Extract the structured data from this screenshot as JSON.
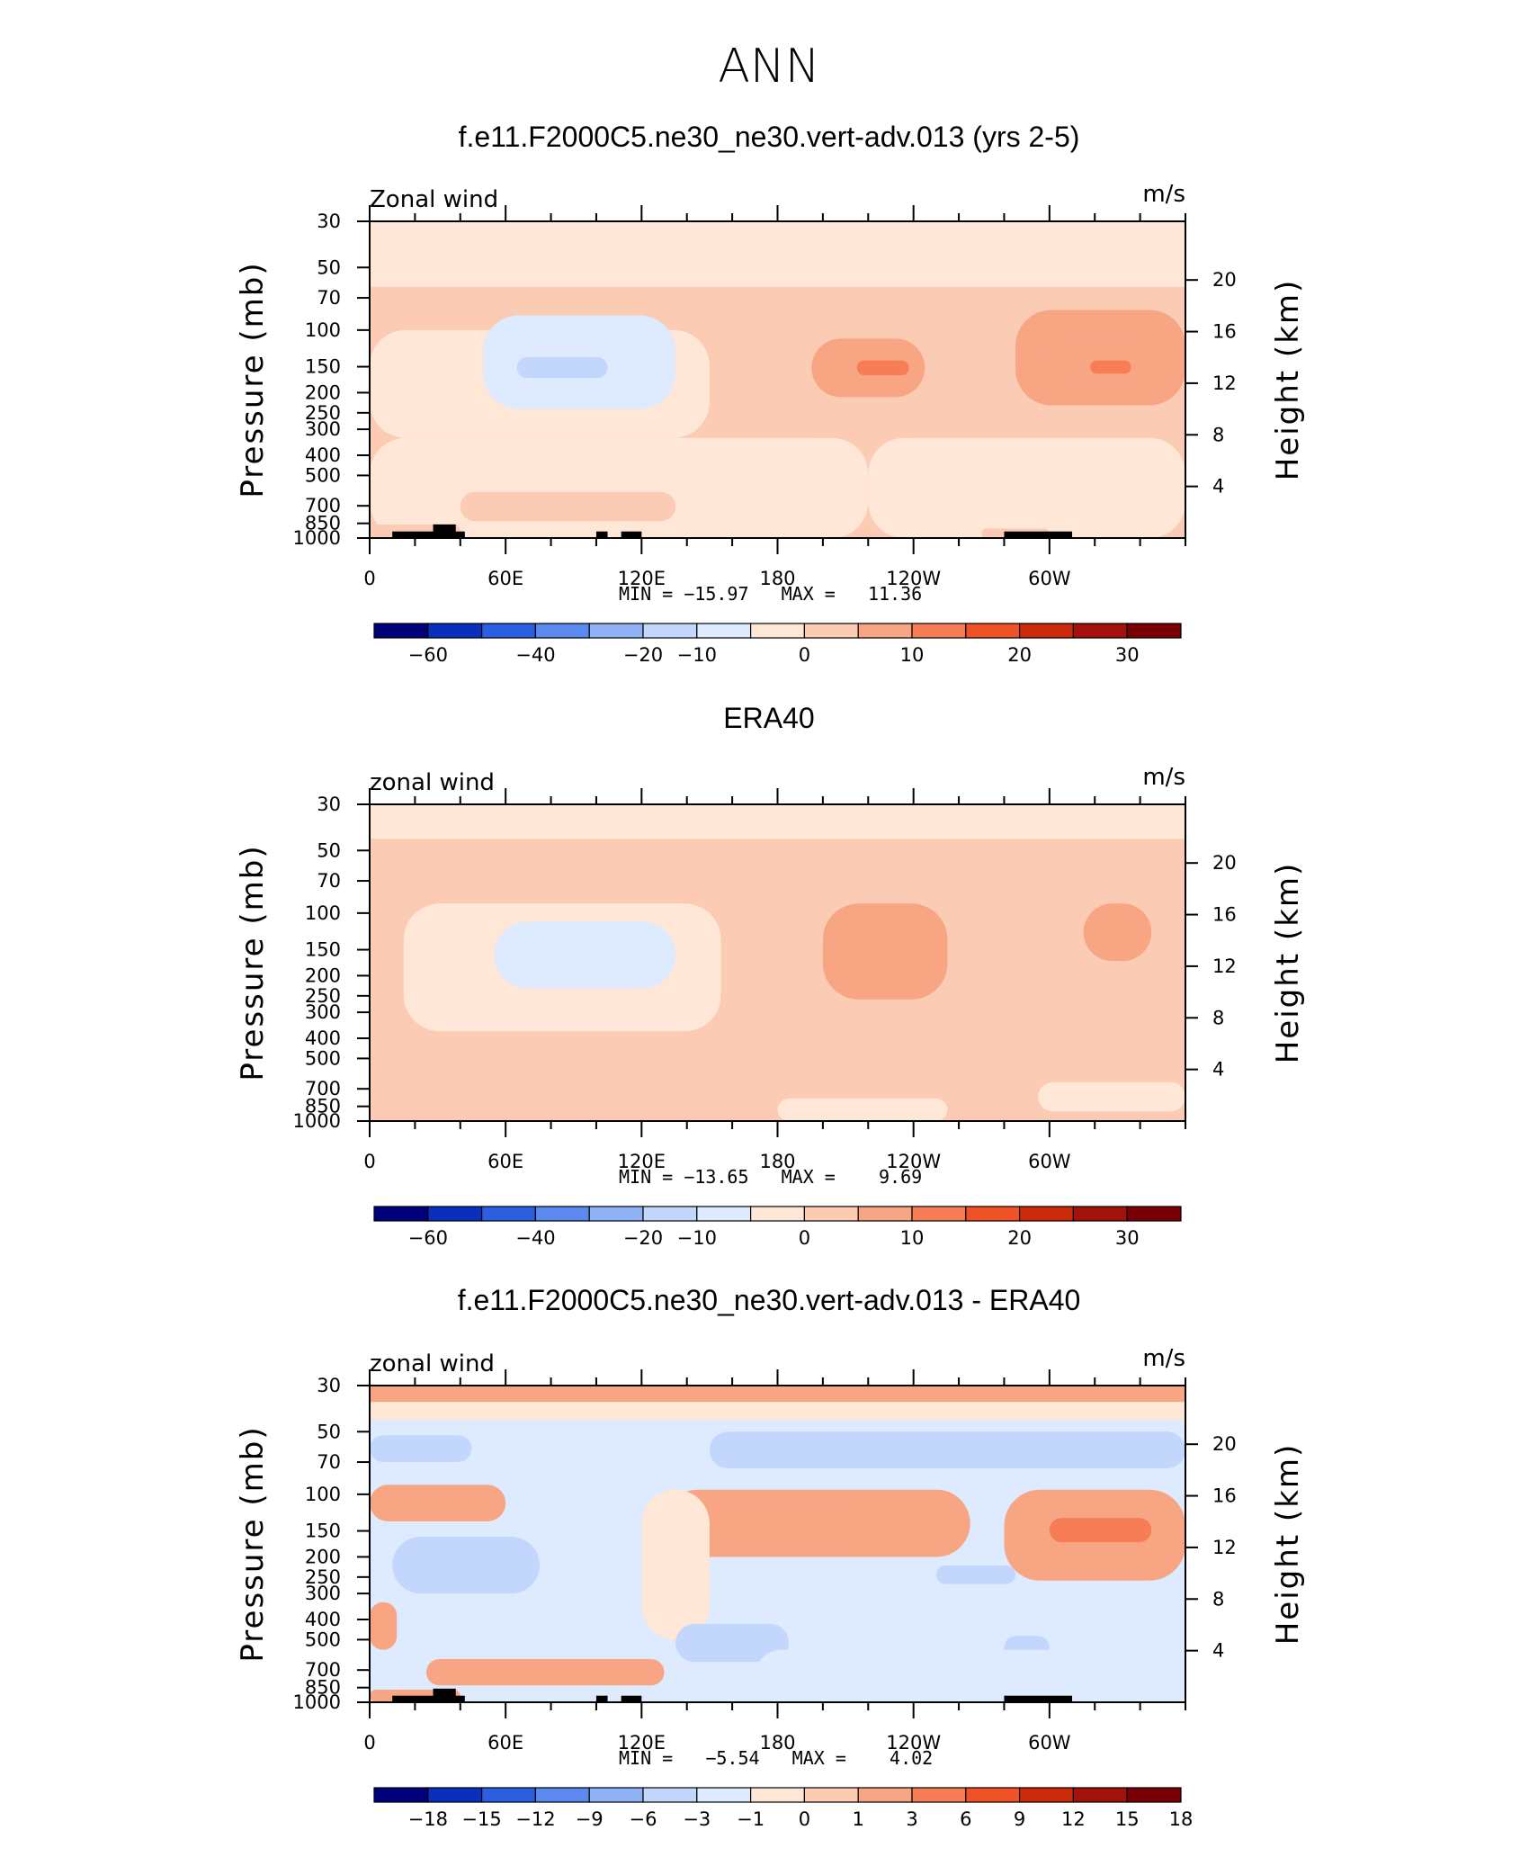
{
  "page_title": "ANN",
  "colors": {
    "land_mask": "#000000",
    "frame": "#000000",
    "palette": [
      "#00007a",
      "#0a2fbf",
      "#2a5fe0",
      "#5a8af0",
      "#8fb2f6",
      "#c3d6fb",
      "#deeafd",
      "#fee7d6",
      "#fbcbb3",
      "#f8a584",
      "#f67d55",
      "#ef5226",
      "#cc2a0b",
      "#a3120a",
      "#7a0008"
    ]
  },
  "chart_data": [
    {
      "type": "heatmap",
      "title": "f.e11.F2000C5.ne30_ne30.vert-adv.013 (yrs 2-5)",
      "left_label": "Zonal wind",
      "units": "m/s",
      "ylabel": "Pressure (mb)",
      "y2label": "Height (km)",
      "x_ticks": [
        "0",
        "60E",
        "120E",
        "180",
        "120W",
        "60W"
      ],
      "x_tick_values": [
        0,
        60,
        120,
        180,
        240,
        300
      ],
      "xlim": [
        0,
        360
      ],
      "p_ticks": [
        "30",
        "50",
        "70",
        "100",
        "150",
        "200",
        "250",
        "300",
        "400",
        "500",
        "700",
        "850",
        "1000"
      ],
      "p_tick_values": [
        30,
        50,
        70,
        100,
        150,
        200,
        250,
        300,
        400,
        500,
        700,
        850,
        1000
      ],
      "height_ticks": [
        "4",
        "8",
        "12",
        "16",
        "20"
      ],
      "height_tick_values": [
        4,
        8,
        12,
        16,
        20
      ],
      "stats_text": "MIN = −15.97   MAX =   11.36",
      "colorbar_labels": [
        "−60",
        "−40",
        "−20",
        "−10",
        "0",
        "10",
        "20",
        "30"
      ],
      "colorbar_label_boundaries": [
        1,
        3,
        5,
        6,
        8,
        10,
        12,
        14
      ],
      "field": {
        "base": 0,
        "features": [
          {
            "lon0": 0,
            "lon1": 360,
            "p0": 30,
            "p1": 62,
            "value": -3
          },
          {
            "lon0": 0,
            "lon1": 360,
            "p0": 62,
            "p1": 330,
            "value": 2
          },
          {
            "lon0": 0,
            "lon1": 150,
            "p0": 100,
            "p1": 330,
            "value": -3
          },
          {
            "lon0": 0,
            "lon1": 220,
            "p0": 330,
            "p1": 1000,
            "value": -3
          },
          {
            "lon0": 220,
            "lon1": 360,
            "p0": 330,
            "p1": 1000,
            "value": -2
          },
          {
            "lon0": 50,
            "lon1": 135,
            "p0": 85,
            "p1": 240,
            "value": -7
          },
          {
            "lon0": 65,
            "lon1": 105,
            "p0": 135,
            "p1": 170,
            "value": -14
          },
          {
            "lon0": 180,
            "lon1": 255,
            "p0": 85,
            "p1": 330,
            "value": 4
          },
          {
            "lon0": 195,
            "lon1": 245,
            "p0": 110,
            "p1": 210,
            "value": 9
          },
          {
            "lon0": 215,
            "lon1": 238,
            "p0": 140,
            "p1": 165,
            "value": 14
          },
          {
            "lon0": 285,
            "lon1": 360,
            "p0": 80,
            "p1": 230,
            "value": 6
          },
          {
            "lon0": 298,
            "lon1": 348,
            "p0": 110,
            "p1": 185,
            "value": 9
          },
          {
            "lon0": 318,
            "lon1": 336,
            "p0": 140,
            "p1": 162,
            "value": 13
          },
          {
            "lon0": 40,
            "lon1": 135,
            "p0": 600,
            "p1": 830,
            "value": 2
          },
          {
            "lon0": 0,
            "lon1": 40,
            "p0": 860,
            "p1": 1000,
            "value": 2
          },
          {
            "lon0": 270,
            "lon1": 300,
            "p0": 900,
            "p1": 1000,
            "value": 2
          }
        ]
      },
      "land": [
        {
          "lon0": 10,
          "lon1": 42,
          "p": 930
        },
        {
          "lon0": 28,
          "lon1": 38,
          "p": 860
        },
        {
          "lon0": 100,
          "lon1": 105,
          "p": 930
        },
        {
          "lon0": 111,
          "lon1": 120,
          "p": 930
        },
        {
          "lon0": 280,
          "lon1": 310,
          "p": 930
        }
      ]
    },
    {
      "type": "heatmap",
      "title": "ERA40",
      "left_label": "zonal wind",
      "units": "m/s",
      "ylabel": "Pressure (mb)",
      "y2label": "Height (km)",
      "x_ticks": [
        "0",
        "60E",
        "120E",
        "180",
        "120W",
        "60W"
      ],
      "x_tick_values": [
        0,
        60,
        120,
        180,
        240,
        300
      ],
      "xlim": [
        0,
        360
      ],
      "p_ticks": [
        "30",
        "50",
        "70",
        "100",
        "150",
        "200",
        "250",
        "300",
        "400",
        "500",
        "700",
        "850",
        "1000"
      ],
      "p_tick_values": [
        30,
        50,
        70,
        100,
        150,
        200,
        250,
        300,
        400,
        500,
        700,
        850,
        1000
      ],
      "height_ticks": [
        "4",
        "8",
        "12",
        "16",
        "20"
      ],
      "height_tick_values": [
        4,
        8,
        12,
        16,
        20
      ],
      "stats_text": "MIN = −13.65   MAX =    9.69",
      "colorbar_labels": [
        "−60",
        "−40",
        "−20",
        "−10",
        "0",
        "10",
        "20",
        "30"
      ],
      "colorbar_label_boundaries": [
        1,
        3,
        5,
        6,
        8,
        10,
        12,
        14
      ],
      "field": {
        "base": 2,
        "features": [
          {
            "lon0": 0,
            "lon1": 360,
            "p0": 30,
            "p1": 44,
            "value": -3
          },
          {
            "lon0": 15,
            "lon1": 155,
            "p0": 90,
            "p1": 370,
            "value": -3
          },
          {
            "lon0": 55,
            "lon1": 135,
            "p0": 110,
            "p1": 230,
            "value": -7
          },
          {
            "lon0": 175,
            "lon1": 360,
            "p0": 68,
            "p1": 360,
            "value": 4
          },
          {
            "lon0": 200,
            "lon1": 255,
            "p0": 90,
            "p1": 260,
            "value": 8
          },
          {
            "lon0": 315,
            "lon1": 345,
            "p0": 90,
            "p1": 170,
            "value": 8
          },
          {
            "lon0": 50,
            "lon1": 105,
            "p0": 620,
            "p1": 1000,
            "value": 4
          },
          {
            "lon0": 180,
            "lon1": 255,
            "p0": 780,
            "p1": 1000,
            "value": -3
          },
          {
            "lon0": 295,
            "lon1": 360,
            "p0": 650,
            "p1": 900,
            "value": -3
          }
        ]
      },
      "land": []
    },
    {
      "type": "heatmap",
      "title": "f.e11.F2000C5.ne30_ne30.vert-adv.013 - ERA40",
      "left_label": "zonal wind",
      "units": "m/s",
      "ylabel": "Pressure (mb)",
      "y2label": "Height (km)",
      "x_ticks": [
        "0",
        "60E",
        "120E",
        "180",
        "120W",
        "60W"
      ],
      "x_tick_values": [
        0,
        60,
        120,
        180,
        240,
        300
      ],
      "xlim": [
        0,
        360
      ],
      "p_ticks": [
        "30",
        "50",
        "70",
        "100",
        "150",
        "200",
        "250",
        "300",
        "400",
        "500",
        "700",
        "850",
        "1000"
      ],
      "p_tick_values": [
        30,
        50,
        70,
        100,
        150,
        200,
        250,
        300,
        400,
        500,
        700,
        850,
        1000
      ],
      "height_ticks": [
        "4",
        "8",
        "12",
        "16",
        "20"
      ],
      "height_tick_values": [
        4,
        8,
        12,
        16,
        20
      ],
      "stats_text": "MIN =   −5.54   MAX =    4.02",
      "colorbar_labels": [
        "−18",
        "−15",
        "−12",
        "−9",
        "−6",
        "−3",
        "−1",
        "0",
        "1",
        "3",
        "6",
        "9",
        "12",
        "15",
        "18"
      ],
      "colorbar_label_boundaries": [
        1,
        2,
        3,
        4,
        5,
        6,
        7,
        8,
        9,
        10,
        11,
        12,
        13,
        14,
        15
      ],
      "field": {
        "base": -1.5,
        "features": [
          {
            "lon0": 0,
            "lon1": 360,
            "p0": 30,
            "p1": 36,
            "value": 1.5
          },
          {
            "lon0": 0,
            "lon1": 360,
            "p0": 36,
            "p1": 44,
            "value": -0.5
          },
          {
            "lon0": 0,
            "lon1": 360,
            "p0": 44,
            "p1": 82,
            "value": -2.5
          },
          {
            "lon0": 150,
            "lon1": 360,
            "p0": 50,
            "p1": 75,
            "value": -4
          },
          {
            "lon0": 0,
            "lon1": 45,
            "p0": 52,
            "p1": 70,
            "value": -4
          },
          {
            "lon0": 0,
            "lon1": 60,
            "p0": 90,
            "p1": 135,
            "value": 2
          },
          {
            "lon0": 130,
            "lon1": 265,
            "p0": 95,
            "p1": 200,
            "value": 1.5
          },
          {
            "lon0": 140,
            "lon1": 220,
            "p0": 110,
            "p1": 170,
            "value": 2
          },
          {
            "lon0": 120,
            "lon1": 150,
            "p0": 95,
            "p1": 500,
            "value": -0.5
          },
          {
            "lon0": 280,
            "lon1": 360,
            "p0": 95,
            "p1": 260,
            "value": 2
          },
          {
            "lon0": 300,
            "lon1": 345,
            "p0": 130,
            "p1": 170,
            "value": 4
          },
          {
            "lon0": 10,
            "lon1": 75,
            "p0": 160,
            "p1": 300,
            "value": -4
          },
          {
            "lon0": 250,
            "lon1": 285,
            "p0": 220,
            "p1": 270,
            "value": -4
          },
          {
            "lon0": 135,
            "lon1": 185,
            "p0": 420,
            "p1": 640,
            "value": -4
          },
          {
            "lon0": 280,
            "lon1": 300,
            "p0": 480,
            "p1": 620,
            "value": -4
          },
          {
            "lon0": 0,
            "lon1": 12,
            "p0": 330,
            "p1": 560,
            "value": 1
          },
          {
            "lon0": 25,
            "lon1": 130,
            "p0": 620,
            "p1": 830,
            "value": 1.5
          },
          {
            "lon0": 0,
            "lon1": 40,
            "p0": 870,
            "p1": 1000,
            "value": 1
          },
          {
            "lon0": 170,
            "lon1": 360,
            "p0": 560,
            "p1": 1000,
            "value": -1.5
          }
        ]
      },
      "land": [
        {
          "lon0": 10,
          "lon1": 42,
          "p": 930
        },
        {
          "lon0": 28,
          "lon1": 38,
          "p": 860
        },
        {
          "lon0": 100,
          "lon1": 105,
          "p": 930
        },
        {
          "lon0": 111,
          "lon1": 120,
          "p": 930
        },
        {
          "lon0": 280,
          "lon1": 310,
          "p": 930
        }
      ]
    }
  ]
}
